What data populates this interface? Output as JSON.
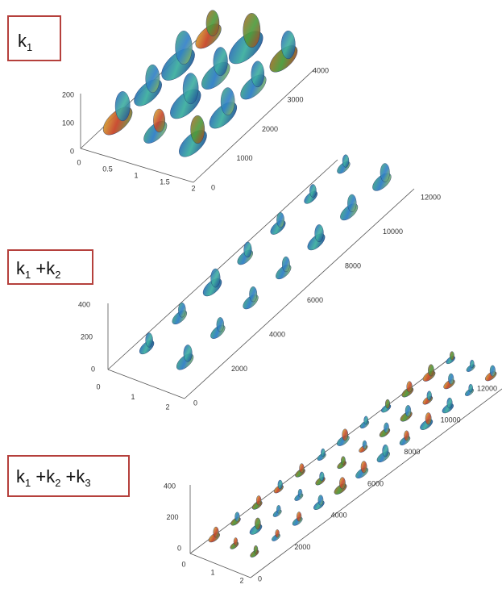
{
  "panels": [
    {
      "label": {
        "segments": [
          {
            "text": "k"
          },
          {
            "sub": "1"
          }
        ]
      },
      "z_ticks": [
        0,
        100,
        200
      ],
      "x_ticks": [
        0,
        0.5,
        1,
        1.5,
        2
      ],
      "y_ticks": [
        0,
        1000,
        2000,
        3000,
        4000
      ]
    },
    {
      "label": {
        "segments": [
          {
            "text": "k"
          },
          {
            "sub": "1"
          },
          {
            "text": " +k"
          },
          {
            "sub": "2"
          }
        ]
      },
      "z_ticks": [
        0,
        200,
        400
      ],
      "x_ticks": [
        0,
        1,
        2
      ],
      "y_ticks": [
        0,
        2000,
        4000,
        6000,
        8000,
        10000,
        12000
      ]
    },
    {
      "label": {
        "segments": [
          {
            "text": "k"
          },
          {
            "sub": "1"
          },
          {
            "text": " +k"
          },
          {
            "sub": "2"
          },
          {
            "text": " +k"
          },
          {
            "sub": "3"
          }
        ]
      },
      "z_ticks": [
        0,
        200,
        400
      ],
      "x_ticks": [
        0,
        1,
        2
      ],
      "y_ticks": [
        0,
        2000,
        4000,
        6000,
        8000,
        10000,
        12000
      ]
    }
  ]
}
